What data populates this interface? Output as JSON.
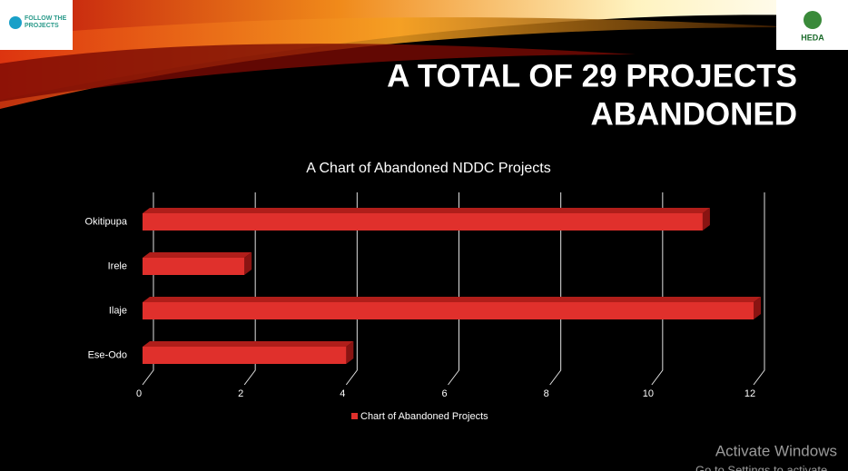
{
  "slide_title": [
    "A TOTAL OF 29 PROJECTS",
    "ABANDONED"
  ],
  "logos": {
    "left": [
      "FOLLOW THE",
      "PROJECTS"
    ],
    "right": "HEDA"
  },
  "watermark": {
    "title": "Activate Windows",
    "subtitle": "Go to Settings to activate"
  },
  "chart_data": {
    "type": "bar",
    "orientation": "horizontal",
    "title": "A Chart of Abandoned NDDC Projects",
    "categories": [
      "Okitipupa",
      "Irele",
      "Ilaje",
      "Ese-Odo"
    ],
    "series": [
      {
        "name": "Chart of Abandoned Projects",
        "color": "#e0302c",
        "values": [
          11,
          2,
          12,
          4
        ]
      }
    ],
    "xlim": [
      0,
      12
    ],
    "xticks": [
      0,
      2,
      4,
      6,
      8,
      10,
      12
    ],
    "grid": true,
    "legend": "bottom"
  }
}
